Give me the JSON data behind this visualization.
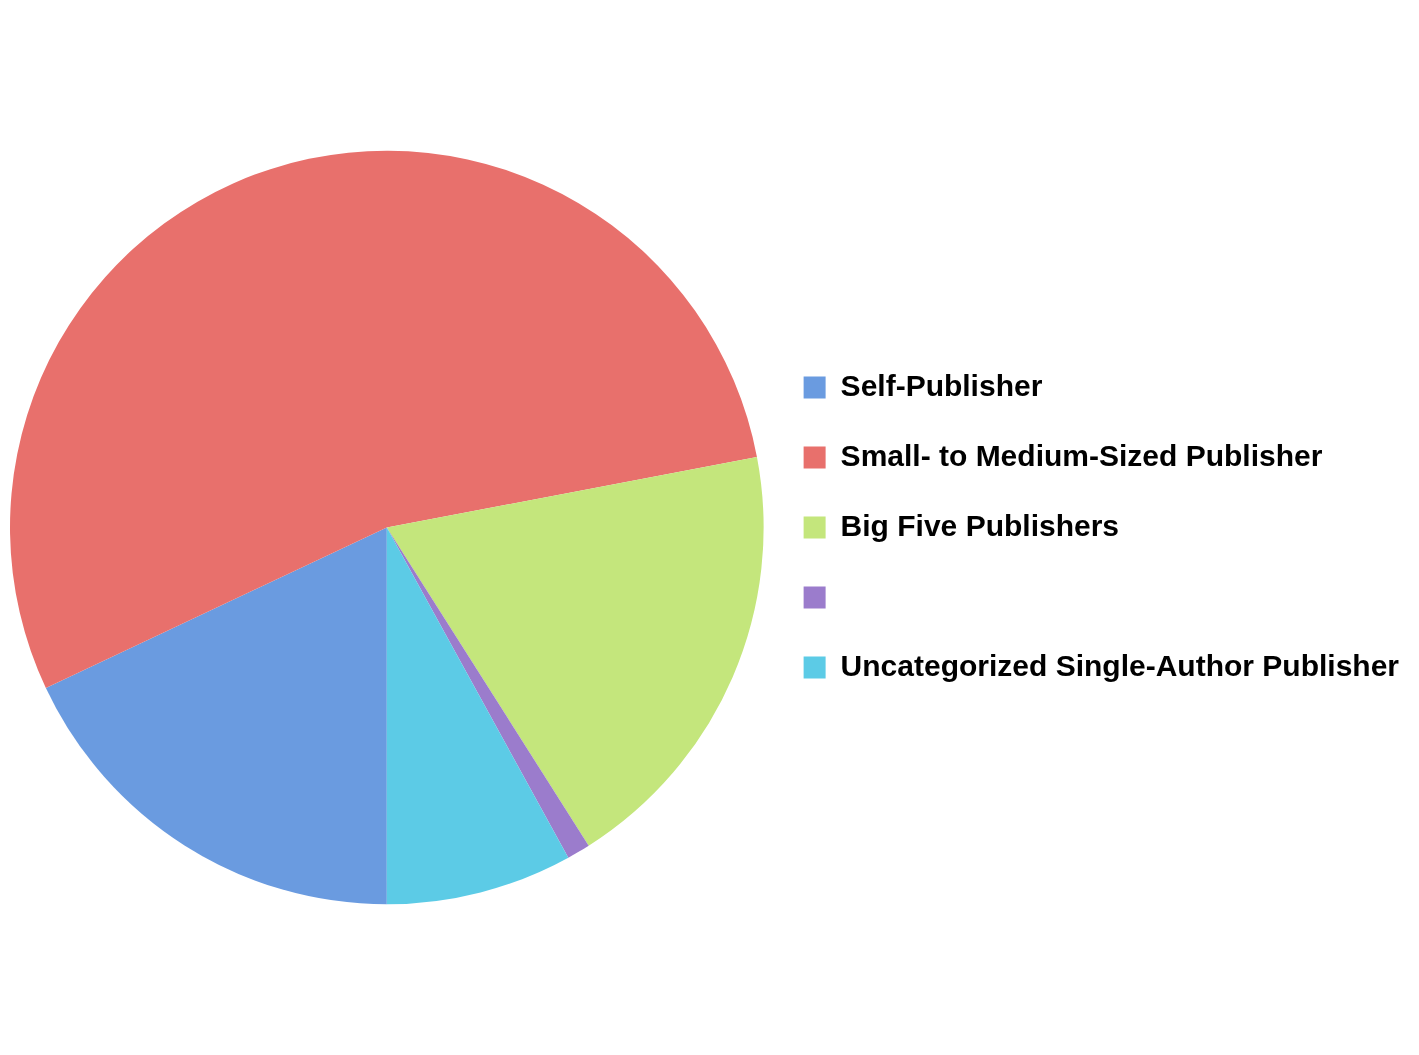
{
  "chart_data": {
    "type": "pie",
    "categories": [
      "Self-Publisher",
      "Small- to Medium-Sized Publisher",
      "Big Five Publishers",
      null,
      "Uncategorized Single-Author Publisher"
    ],
    "values": [
      18,
      54,
      19,
      1,
      8
    ],
    "colors": [
      "#6a9be0",
      "#e8706c",
      "#c4e67c",
      "#9b7ccc",
      "#5ccbe6"
    ],
    "legend": "right"
  }
}
